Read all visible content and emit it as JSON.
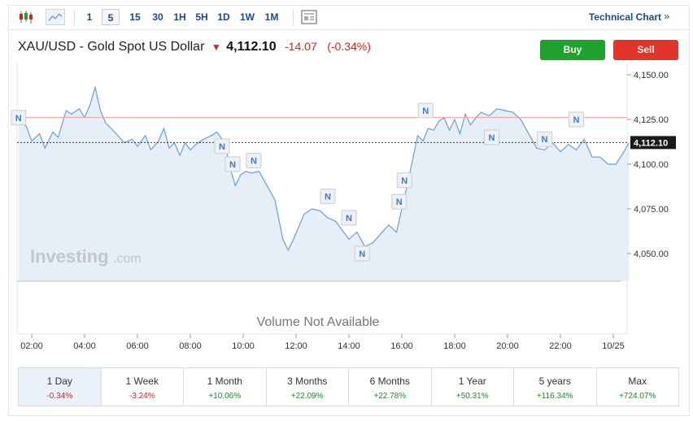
{
  "toolbar": {
    "timeframes": [
      "1",
      "5",
      "15",
      "30",
      "1H",
      "5H",
      "1D",
      "1W",
      "1M"
    ],
    "active_timeframe": "5",
    "technical_chart_label": "Technical Chart",
    "technical_chart_arrow": "»"
  },
  "instrument": {
    "title": "XAU/USD - Gold Spot US Dollar",
    "price": "4,112.10",
    "change": "-14.07",
    "change_pct": "(-0.34%)"
  },
  "actions": {
    "buy_label": "Buy",
    "sell_label": "Sell"
  },
  "watermark": {
    "brand": "Investing",
    "suffix": ".com"
  },
  "volume_message": "Volume Not Available",
  "news_marker_label": "N",
  "colors": {
    "line": "#6a9fd6",
    "area": "#e6eef7",
    "previous_close_line": "#f2a0a0",
    "current_price_label_bg": "#1a1a1a",
    "negative": "#d0261d",
    "positive": "#1a8a2e",
    "buy": "#1fa12e",
    "sell": "#e1352a"
  },
  "chart_data": {
    "type": "area",
    "x_tick_labels": [
      "02:00",
      "04:00",
      "06:00",
      "08:00",
      "10:00",
      "12:00",
      "14:00",
      "16:00",
      "18:00",
      "20:00",
      "22:00",
      "10/25"
    ],
    "y_tick_labels": [
      "4,150.00",
      "4,125.00",
      "4,100.00",
      "4,075.00",
      "4,050.00"
    ],
    "ylim": [
      4035,
      4155
    ],
    "x_hours": [
      1.5,
      1.8,
      2.0,
      2.3,
      2.5,
      2.8,
      3.0,
      3.3,
      3.5,
      3.8,
      4.0,
      4.2,
      4.4,
      4.6,
      4.8,
      5.0,
      5.2,
      5.5,
      5.8,
      6.0,
      6.3,
      6.5,
      6.8,
      7.0,
      7.2,
      7.4,
      7.6,
      7.8,
      8.0,
      8.2,
      8.5,
      8.8,
      9.0,
      9.3,
      9.5,
      9.7,
      9.9,
      10.1,
      10.3,
      10.6,
      10.9,
      11.2,
      11.5,
      11.7,
      11.9,
      12.1,
      12.3,
      12.6,
      12.9,
      13.2,
      13.5,
      13.8,
      14.0,
      14.3,
      14.6,
      14.9,
      15.2,
      15.5,
      15.8,
      16.0,
      16.2,
      16.4,
      16.6,
      16.8,
      17.0,
      17.2,
      17.4,
      17.6,
      17.8,
      18.0,
      18.2,
      18.4,
      18.6,
      18.8,
      19.0,
      19.3,
      19.6,
      19.9,
      20.2,
      20.5,
      20.8,
      21.1,
      21.4,
      21.7,
      22.0,
      22.3,
      22.6,
      22.9,
      23.2,
      23.5,
      23.8,
      24.1,
      24.4,
      24.6
    ],
    "values": [
      4126,
      4121,
      4113,
      4117,
      4109,
      4118,
      4115,
      4130,
      4128,
      4131,
      4126,
      4133,
      4143,
      4130,
      4123,
      4120,
      4117,
      4112,
      4114,
      4110,
      4116,
      4108,
      4113,
      4120,
      4109,
      4112,
      4105,
      4112,
      4108,
      4111,
      4114,
      4116,
      4118,
      4112,
      4098,
      4088,
      4094,
      4096,
      4095,
      4096,
      4088,
      4080,
      4058,
      4052,
      4058,
      4065,
      4072,
      4075,
      4074,
      4070,
      4068,
      4062,
      4058,
      4062,
      4054,
      4056,
      4061,
      4066,
      4062,
      4075,
      4088,
      4102,
      4116,
      4113,
      4120,
      4119,
      4124,
      4126,
      4119,
      4125,
      4117,
      4128,
      4122,
      4126,
      4129,
      4127,
      4131,
      4130,
      4129,
      4125,
      4117,
      4109,
      4108,
      4112,
      4107,
      4111,
      4108,
      4114,
      4104,
      4104,
      4100,
      4100,
      4107,
      4112
    ],
    "previous_close": 4126.17,
    "current_price": 4112.1,
    "current_price_label": "4,112.10",
    "news_marker_hours": [
      1.5,
      9.2,
      9.6,
      10.4,
      13.2,
      14.0,
      14.5,
      15.9,
      16.1,
      16.9,
      19.4,
      21.4,
      22.6
    ],
    "news_marker_values": [
      4126,
      4110,
      4100,
      4102,
      4082,
      4070,
      4050,
      4079,
      4091,
      4130,
      4115,
      4114,
      4125
    ],
    "grid": false
  },
  "periods": [
    {
      "label": "1 Day",
      "change": "-0.34%",
      "sign": "neg"
    },
    {
      "label": "1 Week",
      "change": "-3.24%",
      "sign": "neg"
    },
    {
      "label": "1 Month",
      "change": "+10.06%",
      "sign": "pos"
    },
    {
      "label": "3 Months",
      "change": "+22.09%",
      "sign": "pos"
    },
    {
      "label": "6 Months",
      "change": "+22.78%",
      "sign": "pos"
    },
    {
      "label": "1 Year",
      "change": "+50.31%",
      "sign": "pos"
    },
    {
      "label": "5 years",
      "change": "+116.34%",
      "sign": "pos"
    },
    {
      "label": "Max",
      "change": "+724.07%",
      "sign": "pos"
    }
  ],
  "active_period": "1 Day"
}
